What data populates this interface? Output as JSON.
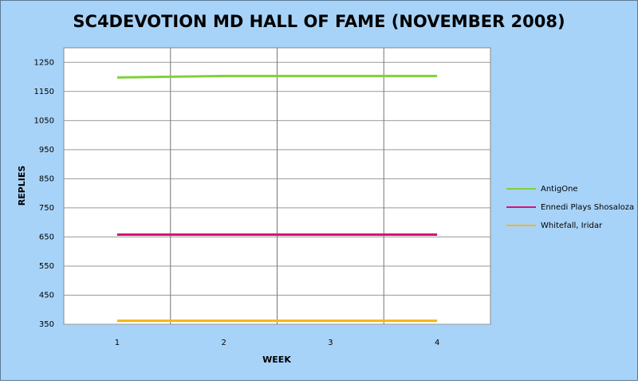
{
  "chart_data": {
    "type": "line",
    "title": "SC4DEVOTION MD HALL OF FAME (NOVEMBER 2008)",
    "x_label": "WEEK",
    "y_label": "REPLIES",
    "categories": [
      "1",
      "2",
      "3",
      "4"
    ],
    "series": [
      {
        "name": "AntigOne",
        "color": "#7ed23a",
        "values": [
          1198,
          1203,
          1203,
          1203
        ]
      },
      {
        "name": "Ennedi Plays  Shosaloza",
        "color": "#d6127a",
        "values": [
          658,
          658,
          658,
          658
        ]
      },
      {
        "name": "Whitefall, Iridar",
        "color": "#f5b418",
        "values": [
          362,
          362,
          362,
          362
        ]
      }
    ],
    "ylim": [
      350,
      1300
    ],
    "yticks": [
      350,
      450,
      550,
      650,
      750,
      850,
      950,
      1050,
      1150,
      1250
    ],
    "grid": true,
    "legend": "right"
  }
}
